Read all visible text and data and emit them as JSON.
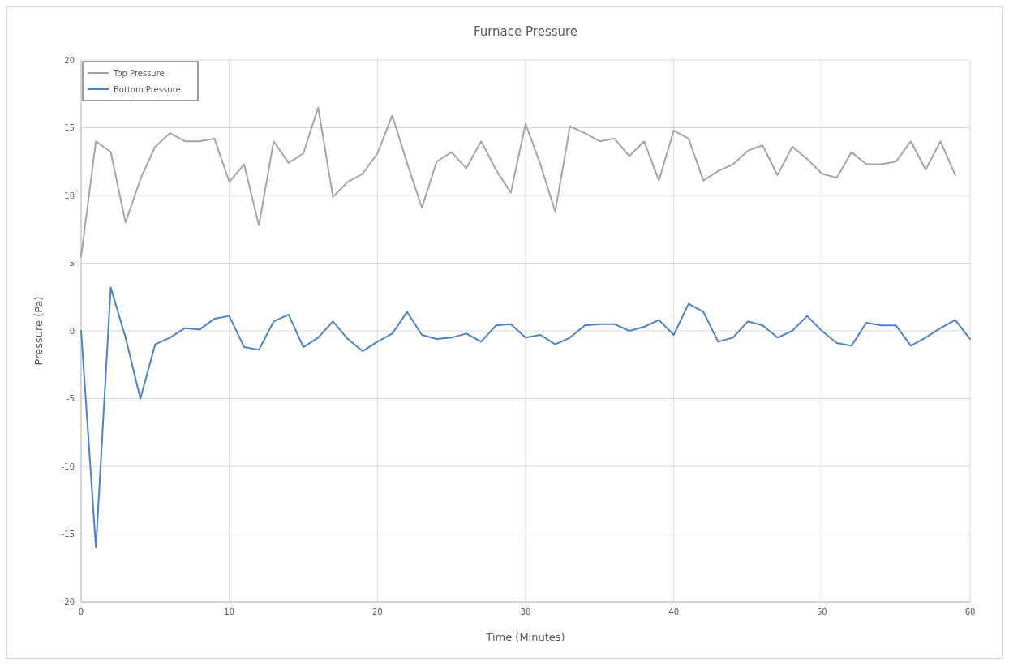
{
  "chart_data": {
    "type": "line",
    "title": "Furnace Pressure",
    "xlabel": "Time (Minutes)",
    "ylabel": "Pressure (Pa)",
    "xlim": [
      0,
      60
    ],
    "xticks": [
      0,
      10,
      20,
      30,
      40,
      50,
      60
    ],
    "ylim": [
      -20,
      20
    ],
    "yticks": [
      -20,
      -15,
      -10,
      -5,
      0,
      5,
      10,
      15,
      20
    ],
    "grid": true,
    "legend": "top left",
    "marker": "none",
    "line_style": "solid",
    "series": [
      {
        "name": "Top Pressure",
        "color": "#a5a5a5",
        "x": [
          0,
          1,
          2,
          3,
          4,
          5,
          6,
          7,
          8,
          9,
          10,
          11,
          12,
          13,
          14,
          15,
          16,
          17,
          18,
          19,
          20,
          21,
          22,
          23,
          24,
          25,
          26,
          27,
          28,
          29,
          30,
          31,
          32,
          33,
          34,
          35,
          36,
          37,
          38,
          39,
          40,
          41,
          42,
          43,
          44,
          45,
          46,
          47,
          48,
          49,
          50,
          51,
          52,
          53,
          54,
          55,
          56,
          57,
          58,
          59
        ],
        "values": [
          5.5,
          14,
          13.2,
          8,
          11.2,
          13.6,
          14.6,
          14,
          14,
          14.2,
          11,
          12.3,
          7.8,
          14,
          12.4,
          13.1,
          16.5,
          9.9,
          11,
          11.6,
          13.1,
          15.9,
          12.4,
          9.1,
          12.5,
          13.2,
          12,
          14,
          11.9,
          10.2,
          15.3,
          12.3,
          8.8,
          15.1,
          14.6,
          14,
          14.2,
          12.9,
          14,
          11.1,
          14.8,
          14.2,
          11.1,
          11.8,
          12.3,
          13.3,
          13.7,
          11.5,
          13.6,
          12.7,
          11.6,
          11.3,
          13.2,
          12.3,
          12.3,
          12.5,
          14,
          11.9,
          14,
          11.5
        ]
      },
      {
        "name": "Bottom Pressure",
        "color": "#4f81c7",
        "x": [
          0,
          1,
          2,
          3,
          4,
          5,
          6,
          7,
          8,
          9,
          10,
          11,
          12,
          13,
          14,
          15,
          16,
          17,
          18,
          19,
          20,
          21,
          22,
          23,
          24,
          25,
          26,
          27,
          28,
          29,
          30,
          31,
          32,
          33,
          34,
          35,
          36,
          37,
          38,
          39,
          40,
          41,
          42,
          43,
          44,
          45,
          46,
          47,
          48,
          49,
          50,
          51,
          52,
          53,
          54,
          55,
          56,
          57,
          58,
          59,
          60
        ],
        "values": [
          0,
          -16,
          3.2,
          -0.5,
          -5,
          -1,
          -0.5,
          0.2,
          0.1,
          0.9,
          1.1,
          -1.2,
          -1.4,
          0.7,
          1.2,
          -1.2,
          -0.5,
          0.7,
          -0.6,
          -1.5,
          -0.8,
          -0.2,
          1.4,
          -0.3,
          -0.6,
          -0.5,
          -0.2,
          -0.8,
          0.4,
          0.5,
          -0.5,
          -0.3,
          -1,
          -0.5,
          0.4,
          0.5,
          0.5,
          0,
          0.3,
          0.8,
          -0.3,
          2,
          1.4,
          -0.8,
          -0.5,
          0.7,
          0.4,
          -0.5,
          0,
          1.1,
          0,
          -0.9,
          -1.1,
          0.6,
          0.4,
          0.4,
          -1.1,
          -0.5,
          0.2,
          0.8,
          -0.6
        ]
      }
    ]
  }
}
